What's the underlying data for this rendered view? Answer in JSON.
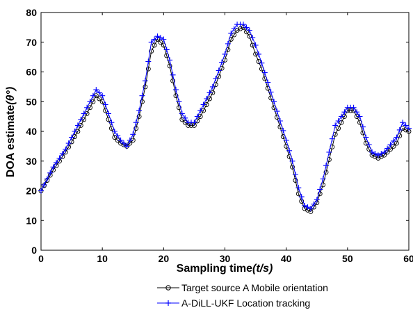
{
  "chart_data": {
    "type": "line",
    "xlabel_main": "Sampling time",
    "xlabel_unit": "(t/s)",
    "ylabel_main": "DOA estimate",
    "ylabel_unit": "(θ°)",
    "xlim": [
      0,
      60
    ],
    "ylim": [
      0,
      80
    ],
    "xticks": [
      "0",
      "10",
      "20",
      "30",
      "40",
      "50",
      "60"
    ],
    "yticks": [
      "0",
      "10",
      "20",
      "30",
      "40",
      "50",
      "60",
      "70",
      "80"
    ],
    "grid": false,
    "legend_placement": "bottom-right",
    "series": [
      {
        "name": "Target source A Mobile orientation",
        "color": "#000000",
        "marker": "circle",
        "x": [
          0,
          2,
          4,
          6,
          8,
          9,
          10,
          11,
          12,
          13,
          14,
          15,
          16,
          17,
          18,
          19,
          20,
          21,
          22,
          23,
          24,
          25,
          26,
          28,
          30,
          31,
          32,
          33,
          34,
          35,
          36,
          38,
          40,
          41,
          42,
          43,
          44,
          45,
          46,
          48,
          50,
          51,
          52,
          53,
          54,
          55,
          56,
          58,
          59,
          60
        ],
        "y": [
          20,
          27,
          33,
          40,
          48,
          52,
          50,
          44,
          38,
          36,
          35,
          37,
          45,
          55,
          67,
          71,
          69,
          62,
          52,
          44,
          42,
          42,
          45,
          53,
          64,
          71,
          74,
          75,
          72,
          66,
          61,
          48,
          35,
          28,
          19,
          14,
          13,
          16,
          22,
          39,
          47,
          47,
          43,
          36,
          32,
          31,
          32,
          36,
          41,
          40
        ]
      },
      {
        "name": "A-DiLL-UKF Location tracking",
        "color": "#0000ff",
        "marker": "plus",
        "x": [
          0,
          2,
          4,
          6,
          8,
          9,
          10,
          11,
          12,
          13,
          14,
          15,
          16,
          17,
          18,
          19,
          20,
          21,
          22,
          23,
          24,
          25,
          26,
          28,
          30,
          31,
          32,
          33,
          34,
          35,
          36,
          38,
          40,
          41,
          42,
          43,
          44,
          45,
          46,
          48,
          50,
          51,
          52,
          53,
          54,
          55,
          56,
          58,
          59,
          60
        ],
        "y": [
          20,
          28,
          34,
          42,
          50,
          54,
          52,
          46,
          40,
          37,
          35,
          39,
          47,
          57,
          70,
          72,
          71,
          64,
          54,
          46,
          43,
          43,
          47,
          55,
          66,
          73,
          76,
          76,
          74,
          69,
          63,
          50,
          37,
          30,
          21,
          15,
          14,
          17,
          24,
          42,
          48,
          48,
          45,
          38,
          33,
          32,
          33,
          38,
          43,
          41
        ]
      }
    ]
  }
}
